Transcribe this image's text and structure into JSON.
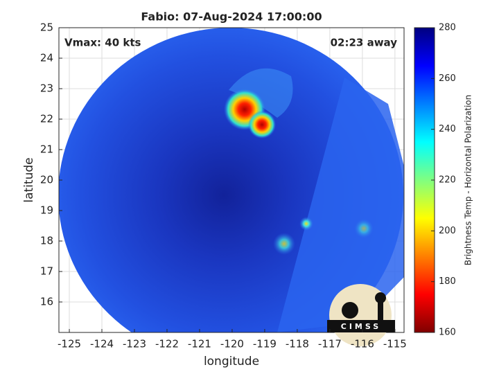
{
  "chart_data": {
    "type": "image",
    "title": "Fabio: 07-Aug-2024 17:00:00",
    "x_label": "longitude",
    "y_label": "latitude",
    "xlim": [
      -125.32,
      -114.72
    ],
    "xticks": [
      -125,
      -124,
      -123,
      -122,
      -121,
      -120,
      -119,
      -118,
      -117,
      -116,
      -115
    ],
    "ylim": [
      15,
      25
    ],
    "yticks": [
      16,
      17,
      18,
      19,
      20,
      21,
      22,
      23,
      24,
      25
    ],
    "grid": true,
    "annotations": [
      "Vmax: 40 kts",
      "02:23 away"
    ],
    "colorbar": {
      "label": "Brightness Temp - Horizontal Polarization",
      "lim": [
        160,
        280
      ],
      "ticks": [
        160,
        180,
        200,
        220,
        240,
        260,
        280
      ],
      "colormap": "jet"
    },
    "logo": "CIMSS"
  }
}
